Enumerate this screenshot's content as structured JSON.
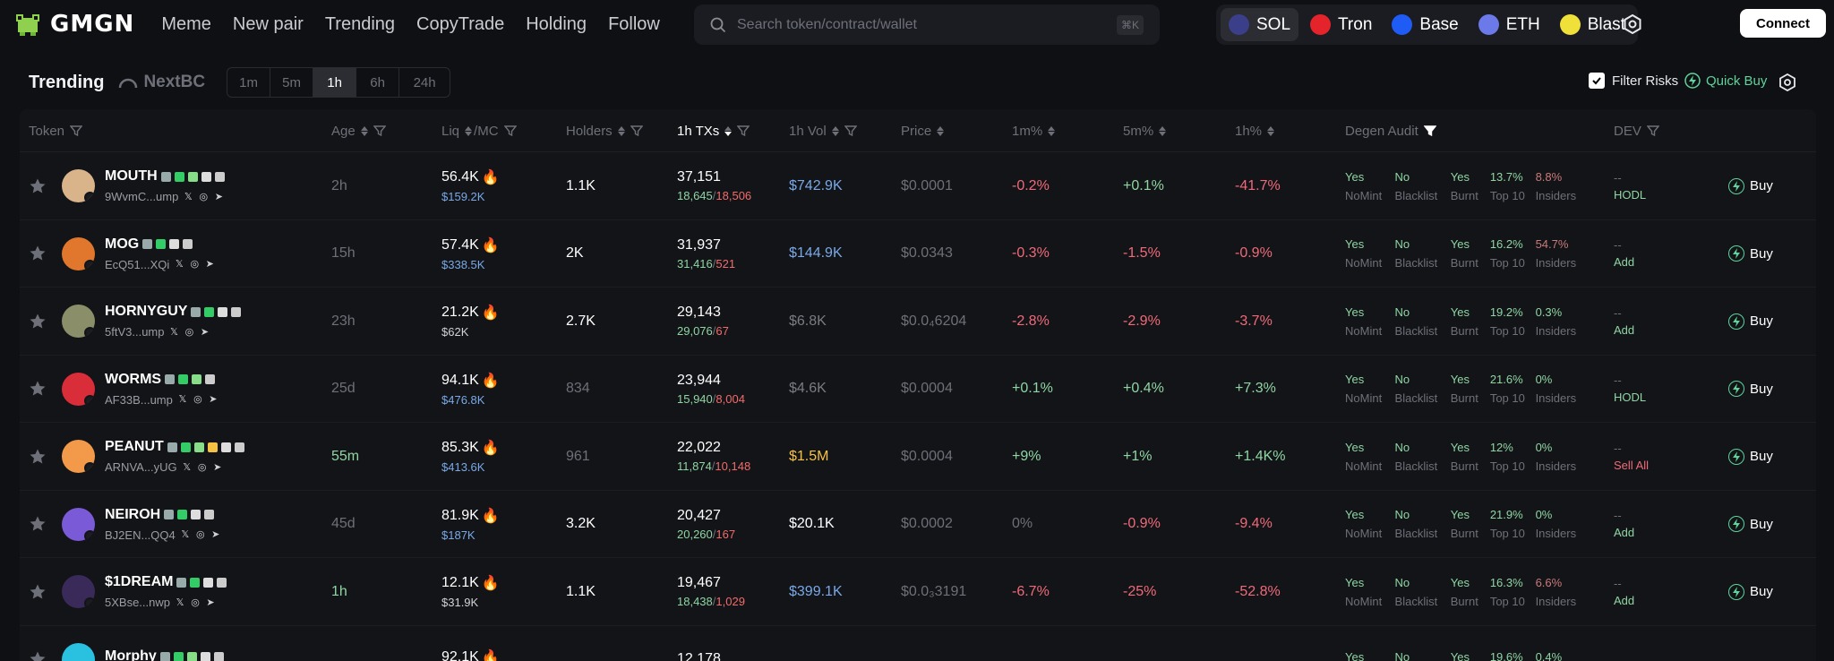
{
  "brand": {
    "name": "GMGN"
  },
  "nav": [
    "Meme",
    "New pair",
    "Trending",
    "CopyTrade",
    "Holding",
    "Follow"
  ],
  "search": {
    "placeholder": "Search token/contract/wallet",
    "shortcut": "⌘K"
  },
  "chains": [
    {
      "name": "SOL",
      "color": "#3b3f8a",
      "active": true
    },
    {
      "name": "Tron",
      "color": "#e5232b"
    },
    {
      "name": "Base",
      "color": "#1f5cf5"
    },
    {
      "name": "ETH",
      "color": "#6b7ae8"
    },
    {
      "name": "Blast",
      "color": "#f0e13a"
    }
  ],
  "connect_label": "Connect",
  "page": {
    "title": "Trending",
    "nextbc": "NextBC"
  },
  "timeframes": [
    "1m",
    "5m",
    "1h",
    "6h",
    "24h"
  ],
  "active_timeframe": "1h",
  "filter_risks": "Filter Risks",
  "quick_buy": "Quick Buy",
  "columns": {
    "token": "Token",
    "age": "Age",
    "liq": "Liq",
    "mc": "/MC",
    "holders": "Holders",
    "txs": "1h TXs",
    "vol": "1h Vol",
    "price": "Price",
    "m1": "1m%",
    "m5": "5m%",
    "h1": "1h%",
    "audit": "Degen Audit",
    "dev": "DEV"
  },
  "audit_labels": {
    "nomint": "NoMint",
    "blacklist": "Blacklist",
    "burnt": "Burnt",
    "top10": "Top 10",
    "insiders": "Insiders"
  },
  "rows": [
    {
      "name": "MOUTH",
      "addr": "9WvmC...ump",
      "age": "2h",
      "age_green": false,
      "liq": "56.4K",
      "mc": "$159.2K",
      "mc_blue": true,
      "holders": "1.1K",
      "holders_dim": false,
      "txs": "37,151",
      "buys": "18,645",
      "sells": "18,506",
      "vol": "$742.9K",
      "vol_c": "blue",
      "price": "$0.0001",
      "m1": "-0.2%",
      "m1_c": "neg",
      "m5": "+0.1%",
      "m5_c": "pos",
      "h1": "-41.7%",
      "h1_c": "neg",
      "nomint": "Yes",
      "blacklist": "No",
      "burnt": "Yes",
      "top10": "13.7%",
      "insiders": "8.8%",
      "insiders_c": "#c97a7a",
      "dev1": "--",
      "dev2": "HODL",
      "dev2_c": "#8fd6a4",
      "buy": "Buy",
      "av": "#d9b38a",
      "badges": [
        "#9aa",
        "#3c6",
        "#8d8",
        "#ddd",
        "#ccc"
      ]
    },
    {
      "name": "MOG",
      "addr": "EcQ51...XQi",
      "age": "15h",
      "age_green": false,
      "liq": "57.4K",
      "mc": "$338.5K",
      "mc_blue": true,
      "holders": "2K",
      "holders_dim": false,
      "txs": "31,937",
      "buys": "31,416",
      "sells": "521",
      "vol": "$144.9K",
      "vol_c": "blue",
      "price": "$0.0343",
      "m1": "-0.3%",
      "m1_c": "neg",
      "m5": "-1.5%",
      "m5_c": "neg",
      "h1": "-0.9%",
      "h1_c": "neg",
      "nomint": "Yes",
      "blacklist": "No",
      "burnt": "Yes",
      "top10": "16.2%",
      "insiders": "54.7%",
      "insiders_c": "#c97a7a",
      "dev1": "--",
      "dev2": "Add",
      "dev2_c": "#8fd6a4",
      "buy": "Buy",
      "av": "#e0772c",
      "badges": [
        "#9aa",
        "#3c6",
        "#ddd",
        "#ccc"
      ]
    },
    {
      "name": "HORNYGUY",
      "addr": "5ftV3...ump",
      "age": "23h",
      "age_green": false,
      "liq": "21.2K",
      "mc": "$62K",
      "mc_blue": false,
      "holders": "2.7K",
      "holders_dim": false,
      "txs": "29,143",
      "buys": "29,076",
      "sells": "67",
      "vol": "$6.8K",
      "vol_c": "grey",
      "price": "$0.0₄6204",
      "m1": "-2.8%",
      "m1_c": "neg",
      "m5": "-2.9%",
      "m5_c": "neg",
      "h1": "-3.7%",
      "h1_c": "neg",
      "nomint": "Yes",
      "blacklist": "No",
      "burnt": "Yes",
      "top10": "19.2%",
      "insiders": "0.3%",
      "insiders_c": "#8fd6a4",
      "dev1": "--",
      "dev2": "Add",
      "dev2_c": "#8fd6a4",
      "buy": "Buy",
      "av": "#8a8f6a",
      "badges": [
        "#9aa",
        "#3c6",
        "#ddd",
        "#ccc"
      ]
    },
    {
      "name": "WORMS",
      "addr": "AF33B...ump",
      "age": "25d",
      "age_green": false,
      "liq": "94.1K",
      "mc": "$476.8K",
      "mc_blue": true,
      "holders": "834",
      "holders_dim": true,
      "txs": "23,944",
      "buys": "15,940",
      "sells": "8,004",
      "vol": "$4.6K",
      "vol_c": "grey",
      "price": "$0.0004",
      "m1": "+0.1%",
      "m1_c": "pos",
      "m5": "+0.4%",
      "m5_c": "pos",
      "h1": "+7.3%",
      "h1_c": "pos",
      "nomint": "Yes",
      "blacklist": "No",
      "burnt": "Yes",
      "top10": "21.6%",
      "insiders": "0%",
      "insiders_c": "#8fd6a4",
      "dev1": "--",
      "dev2": "HODL",
      "dev2_c": "#8fd6a4",
      "buy": "Buy",
      "av": "#d92d3a",
      "badges": [
        "#9aa",
        "#3c6",
        "#8d8",
        "#ccc"
      ]
    },
    {
      "name": "PEANUT",
      "addr": "ARNVA...yUG",
      "age": "55m",
      "age_green": true,
      "liq": "85.3K",
      "mc": "$413.6K",
      "mc_blue": true,
      "holders": "961",
      "holders_dim": true,
      "txs": "22,022",
      "buys": "11,874",
      "sells": "10,148",
      "vol": "$1.5M",
      "vol_c": "orange",
      "price": "$0.0004",
      "m1": "+9%",
      "m1_c": "pos",
      "m5": "+1%",
      "m5_c": "pos",
      "h1": "+1.4K%",
      "h1_c": "pos",
      "nomint": "Yes",
      "blacklist": "No",
      "burnt": "Yes",
      "top10": "12%",
      "insiders": "0%",
      "insiders_c": "#8fd6a4",
      "dev1": "--",
      "dev2": "Sell All",
      "dev2_c": "#f06a7a",
      "buy": "Buy",
      "av": "#f29a4a",
      "badges": [
        "#9aa",
        "#3c6",
        "#8d8",
        "#f5c243",
        "#ddd",
        "#ccc"
      ]
    },
    {
      "name": "NEIROH",
      "addr": "BJ2EN...QQ4",
      "age": "45d",
      "age_green": false,
      "liq": "81.9K",
      "mc": "$187K",
      "mc_blue": true,
      "holders": "3.2K",
      "holders_dim": false,
      "txs": "20,427",
      "buys": "20,260",
      "sells": "167",
      "vol": "$20.1K",
      "vol_c": "white",
      "price": "$0.0002",
      "m1": "0%",
      "m1_c": "dimc",
      "m5": "-0.9%",
      "m5_c": "neg",
      "h1": "-9.4%",
      "h1_c": "neg",
      "nomint": "Yes",
      "blacklist": "No",
      "burnt": "Yes",
      "top10": "21.9%",
      "insiders": "0%",
      "insiders_c": "#8fd6a4",
      "dev1": "--",
      "dev2": "Add",
      "dev2_c": "#8fd6a4",
      "buy": "Buy",
      "av": "#7a5ad6",
      "badges": [
        "#9aa",
        "#3c6",
        "#ddd",
        "#ccc"
      ]
    },
    {
      "name": "$1DREAM",
      "addr": "5XBse...nwp",
      "age": "1h",
      "age_green": true,
      "liq": "12.1K",
      "mc": "$31.9K",
      "mc_blue": false,
      "holders": "1.1K",
      "holders_dim": false,
      "txs": "19,467",
      "buys": "18,438",
      "sells": "1,029",
      "vol": "$399.1K",
      "vol_c": "blue",
      "price": "$0.0₃3191",
      "m1": "-6.7%",
      "m1_c": "neg",
      "m5": "-25%",
      "m5_c": "neg",
      "h1": "-52.8%",
      "h1_c": "neg",
      "nomint": "Yes",
      "blacklist": "No",
      "burnt": "Yes",
      "top10": "16.3%",
      "insiders": "6.6%",
      "insiders_c": "#c97a7a",
      "dev1": "--",
      "dev2": "Add",
      "dev2_c": "#8fd6a4",
      "buy": "Buy",
      "av": "#3a2a5a",
      "badges": [
        "#9aa",
        "#3c6",
        "#ddd",
        "#ccc"
      ]
    },
    {
      "name": "Morphy",
      "addr": "",
      "age": "",
      "age_green": false,
      "liq": "92.1K",
      "mc": "",
      "mc_blue": true,
      "holders": "",
      "holders_dim": false,
      "txs": "12,178",
      "buys": "",
      "sells": "",
      "vol": "",
      "vol_c": "white",
      "price": "",
      "m1": "",
      "m1_c": "neg",
      "m5": "",
      "m5_c": "neg",
      "h1": "",
      "h1_c": "neg",
      "nomint": "Yes",
      "blacklist": "No",
      "burnt": "Yes",
      "top10": "19.6%",
      "insiders": "0.4%",
      "insiders_c": "#8fd6a4",
      "dev1": "",
      "dev2": "",
      "dev2_c": "#8fd6a4",
      "buy": "",
      "av": "#2ac0e0",
      "badges": [
        "#9aa",
        "#3c6",
        "#8d8",
        "#ddd",
        "#ccc"
      ]
    }
  ]
}
